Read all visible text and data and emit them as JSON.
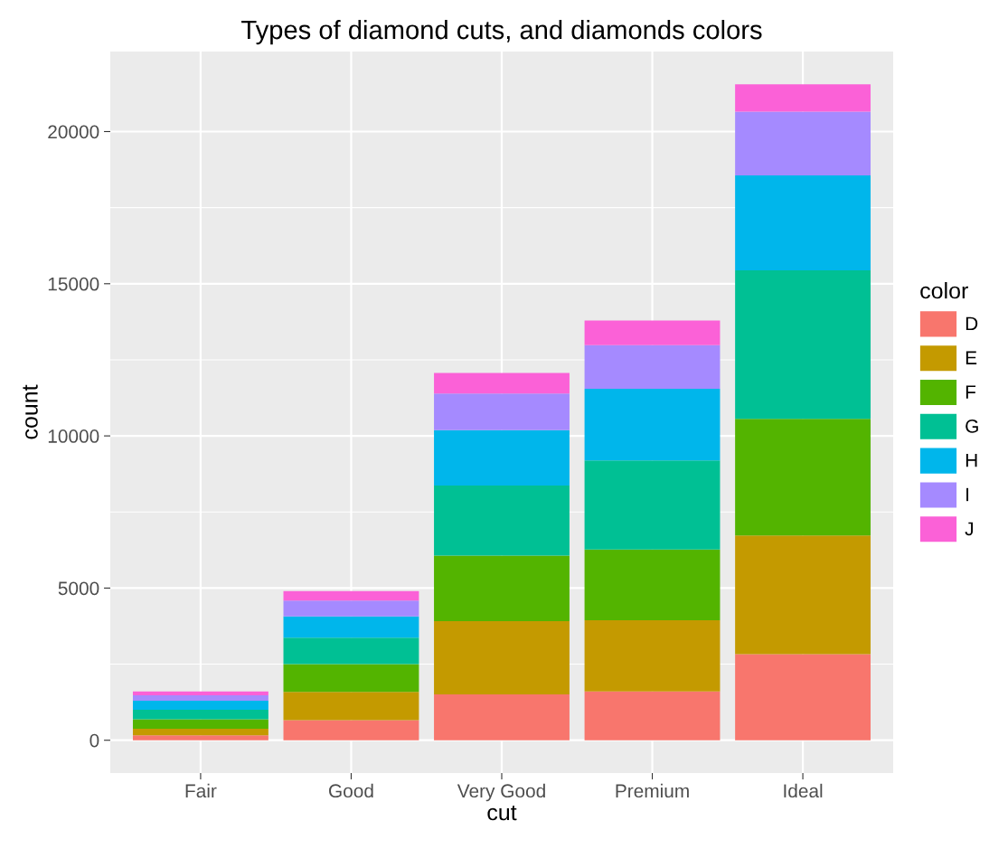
{
  "chart_data": {
    "type": "bar",
    "title": "Types of diamond cuts, and diamonds colors",
    "xlabel": "cut",
    "ylabel": "count",
    "legend_title": "color",
    "stacked": true,
    "grid": true,
    "legend": "right",
    "categories": [
      "Fair",
      "Good",
      "Very Good",
      "Premium",
      "Ideal"
    ],
    "series": [
      {
        "name": "D",
        "color": "#f8766d",
        "values": [
          160,
          660,
          1510,
          1600,
          2830
        ]
      },
      {
        "name": "E",
        "color": "#c49a00",
        "values": [
          220,
          930,
          2400,
          2340,
          3900
        ]
      },
      {
        "name": "F",
        "color": "#53b400",
        "values": [
          310,
          910,
          2160,
          2330,
          3830
        ]
      },
      {
        "name": "G",
        "color": "#00c094",
        "values": [
          310,
          870,
          2300,
          2920,
          4880
        ]
      },
      {
        "name": "H",
        "color": "#00b6eb",
        "values": [
          300,
          700,
          1820,
          2360,
          3120
        ]
      },
      {
        "name": "I",
        "color": "#a58aff",
        "values": [
          180,
          520,
          1200,
          1430,
          2090
        ]
      },
      {
        "name": "J",
        "color": "#fb61d7",
        "values": [
          120,
          310,
          680,
          810,
          900
        ]
      }
    ],
    "ylim": [
      -1078,
      22629
    ],
    "yticks": [
      0,
      5000,
      10000,
      15000,
      20000
    ]
  }
}
